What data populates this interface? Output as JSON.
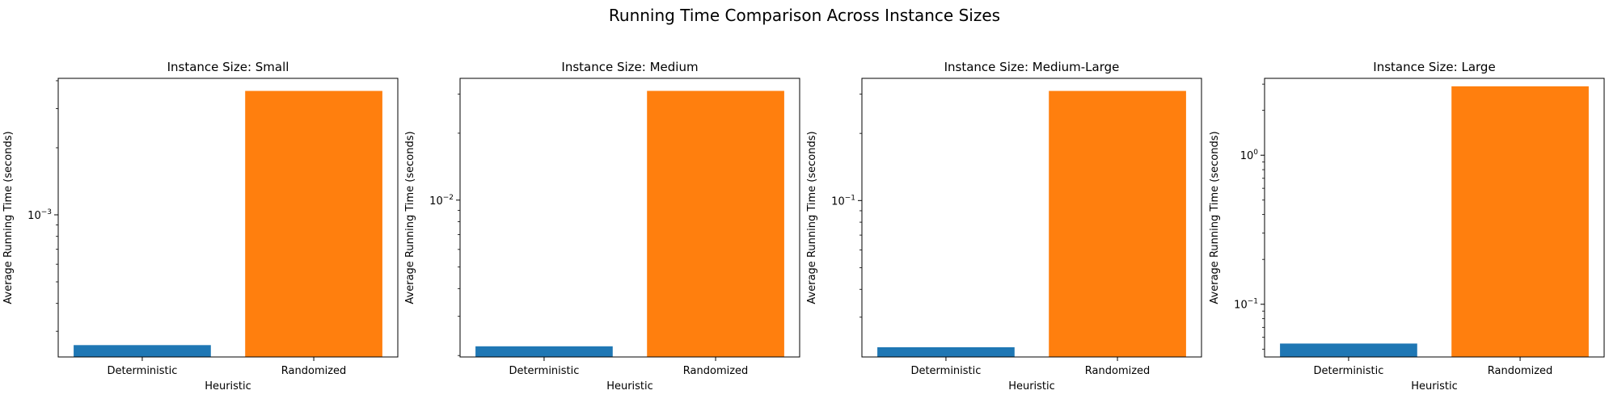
{
  "figure": {
    "suptitle": "Running Time Comparison Across Instance Sizes"
  },
  "chart_data": [
    {
      "type": "bar",
      "title": "Instance Size: Small",
      "xlabel": "Heuristic",
      "ylabel": "Average Running Time (seconds)",
      "yscale": "log",
      "ylim": [
        0.00023,
        0.0041
      ],
      "categories": [
        "Deterministic",
        "Randomized"
      ],
      "values": [
        0.00026,
        0.0036
      ],
      "colors": [
        "#1f77b4",
        "#ff7f0e"
      ],
      "major_ticks": [
        {
          "value": 0.001,
          "base": "10",
          "exp": "−3"
        }
      ],
      "minor_ticks": [
        0.0003,
        0.0004,
        0.0005,
        0.0006,
        0.0007,
        0.0008,
        0.0009,
        0.002,
        0.003,
        0.004
      ],
      "grid": false
    },
    {
      "type": "bar",
      "title": "Instance Size: Medium",
      "xlabel": "Heuristic",
      "ylabel": "Average Running Time (seconds)",
      "yscale": "log",
      "ylim": [
        0.00197,
        0.0353
      ],
      "categories": [
        "Deterministic",
        "Randomized"
      ],
      "values": [
        0.0022,
        0.031
      ],
      "colors": [
        "#1f77b4",
        "#ff7f0e"
      ],
      "major_ticks": [
        {
          "value": 0.01,
          "base": "10",
          "exp": "−2"
        }
      ],
      "minor_ticks": [
        0.002,
        0.003,
        0.004,
        0.005,
        0.006,
        0.007,
        0.008,
        0.009,
        0.02,
        0.03
      ],
      "grid": false
    },
    {
      "type": "bar",
      "title": "Instance Size: Medium-Large",
      "xlabel": "Heuristic",
      "ylabel": "Average Running Time (seconds)",
      "yscale": "log",
      "ylim": [
        0.0199,
        0.353
      ],
      "categories": [
        "Deterministic",
        "Randomized"
      ],
      "values": [
        0.022,
        0.31
      ],
      "colors": [
        "#1f77b4",
        "#ff7f0e"
      ],
      "major_ticks": [
        {
          "value": 0.1,
          "base": "10",
          "exp": "−1"
        }
      ],
      "minor_ticks": [
        0.03,
        0.04,
        0.05,
        0.06,
        0.07,
        0.08,
        0.09,
        0.2,
        0.3
      ],
      "grid": false
    },
    {
      "type": "bar",
      "title": "Instance Size: Large",
      "xlabel": "Heuristic",
      "ylabel": "Average Running Time (seconds)",
      "yscale": "log",
      "ylim": [
        0.0443,
        3.28
      ],
      "categories": [
        "Deterministic",
        "Randomized"
      ],
      "values": [
        0.0545,
        2.9
      ],
      "colors": [
        "#1f77b4",
        "#ff7f0e"
      ],
      "major_ticks": [
        {
          "value": 0.1,
          "base": "10",
          "exp": "−1"
        },
        {
          "value": 1,
          "base": "10",
          "exp": "0"
        }
      ],
      "minor_ticks": [
        0.05,
        0.06,
        0.07,
        0.08,
        0.09,
        0.2,
        0.3,
        0.4,
        0.5,
        0.6,
        0.7,
        0.8,
        0.9,
        2,
        3
      ],
      "grid": false
    }
  ]
}
